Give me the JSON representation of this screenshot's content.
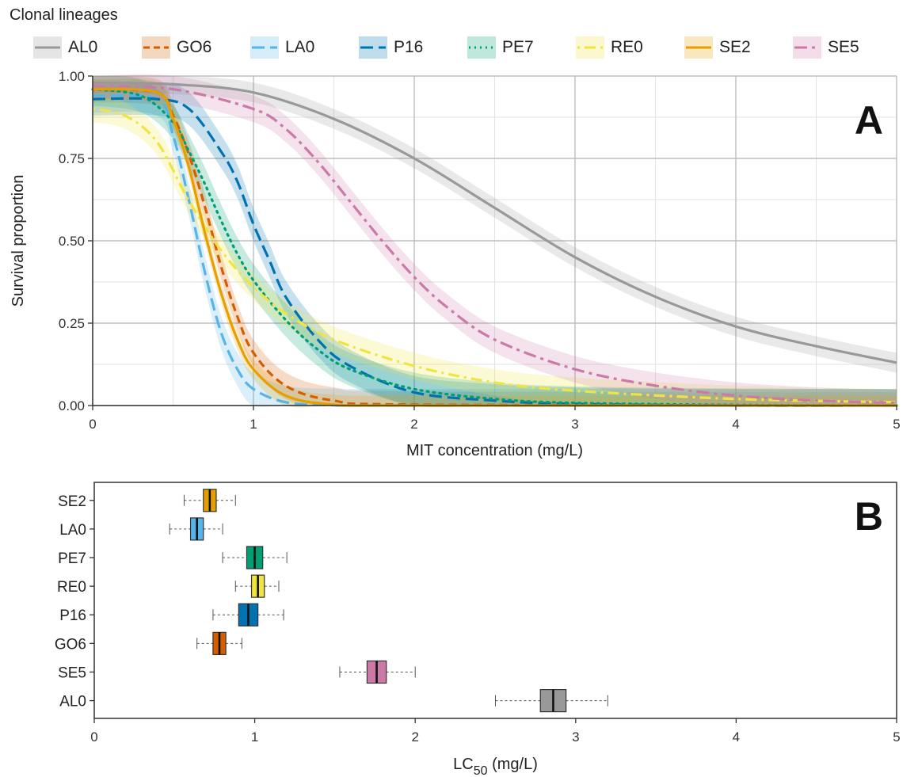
{
  "legend": {
    "title": "Clonal lineages",
    "entries": [
      {
        "name": "AL0",
        "color": "#999999",
        "dash": "solid"
      },
      {
        "name": "GO6",
        "color": "#D55E00",
        "dash": "dashed"
      },
      {
        "name": "LA0",
        "color": "#56B4E9",
        "dash": "longdash"
      },
      {
        "name": "P16",
        "color": "#0072B2",
        "dash": "longdash"
      },
      {
        "name": "PE7",
        "color": "#009E73",
        "dash": "dotted"
      },
      {
        "name": "RE0",
        "color": "#F0E442",
        "dash": "dotdash"
      },
      {
        "name": "SE2",
        "color": "#E69F00",
        "dash": "solid"
      },
      {
        "name": "SE5",
        "color": "#CC79A7",
        "dash": "dashdot"
      }
    ]
  },
  "chart_data": [
    {
      "type": "line",
      "panel_label": "A",
      "xlabel": "MIT concentration (mg/L)",
      "ylabel": "Survival proportion",
      "xlim": [
        0,
        5
      ],
      "ylim": [
        0,
        1
      ],
      "xticks": [
        "0",
        "1",
        "2",
        "3",
        "4",
        "5"
      ],
      "yticks": [
        "0.00",
        "0.25",
        "0.50",
        "0.75",
        "1.00"
      ],
      "grid": true,
      "series": [
        {
          "name": "AL0",
          "x": [
            0,
            0.5,
            1,
            1.5,
            2,
            2.5,
            3,
            3.5,
            4,
            4.5,
            5
          ],
          "y": [
            0.98,
            0.975,
            0.95,
            0.87,
            0.75,
            0.6,
            0.45,
            0.33,
            0.24,
            0.18,
            0.13
          ],
          "band": 0.03
        },
        {
          "name": "GO6",
          "x": [
            0,
            0.4,
            0.5,
            0.6,
            0.7,
            0.8,
            0.9,
            1,
            1.2,
            1.5,
            2,
            5
          ],
          "y": [
            0.96,
            0.95,
            0.88,
            0.76,
            0.6,
            0.42,
            0.27,
            0.16,
            0.06,
            0.015,
            0.003,
            0
          ],
          "band": 0.04
        },
        {
          "name": "LA0",
          "x": [
            0,
            0.4,
            0.5,
            0.6,
            0.7,
            0.8,
            0.9,
            1,
            1.2,
            1.5,
            2,
            5
          ],
          "y": [
            0.94,
            0.93,
            0.82,
            0.62,
            0.4,
            0.22,
            0.11,
            0.05,
            0.01,
            0.001,
            0,
            0
          ],
          "band": 0.05
        },
        {
          "name": "P16",
          "x": [
            0,
            0.4,
            0.6,
            0.8,
            0.9,
            1,
            1.1,
            1.2,
            1.4,
            1.6,
            2,
            2.5,
            3,
            4,
            5
          ],
          "y": [
            0.93,
            0.93,
            0.9,
            0.77,
            0.68,
            0.55,
            0.44,
            0.33,
            0.2,
            0.12,
            0.04,
            0.015,
            0.005,
            0,
            0
          ],
          "band": 0.05
        },
        {
          "name": "PE7",
          "x": [
            0,
            0.3,
            0.5,
            0.6,
            0.7,
            0.8,
            0.9,
            1,
            1.2,
            1.4,
            1.6,
            2,
            2.5,
            3,
            4,
            5
          ],
          "y": [
            0.96,
            0.94,
            0.86,
            0.77,
            0.67,
            0.56,
            0.46,
            0.38,
            0.26,
            0.17,
            0.11,
            0.05,
            0.02,
            0.008,
            0.002,
            0
          ],
          "band": 0.05
        },
        {
          "name": "RE0",
          "x": [
            0,
            0.2,
            0.4,
            0.6,
            0.8,
            1,
            1.2,
            1.5,
            2,
            2.5,
            3,
            4,
            5
          ],
          "y": [
            0.9,
            0.88,
            0.8,
            0.62,
            0.47,
            0.36,
            0.28,
            0.2,
            0.12,
            0.07,
            0.045,
            0.02,
            0.01
          ],
          "band": 0.04
        },
        {
          "name": "SE2",
          "x": [
            0,
            0.4,
            0.5,
            0.6,
            0.7,
            0.8,
            0.9,
            1,
            1.2,
            1.5,
            2,
            5
          ],
          "y": [
            0.96,
            0.95,
            0.87,
            0.72,
            0.52,
            0.34,
            0.2,
            0.11,
            0.03,
            0.003,
            0,
            0
          ],
          "band": 0.03
        },
        {
          "name": "SE5",
          "x": [
            0,
            0.5,
            1,
            1.2,
            1.4,
            1.6,
            1.8,
            2,
            2.2,
            2.5,
            3,
            3.5,
            4,
            4.5,
            5
          ],
          "y": [
            0.97,
            0.96,
            0.9,
            0.84,
            0.74,
            0.62,
            0.5,
            0.39,
            0.3,
            0.2,
            0.11,
            0.06,
            0.03,
            0.015,
            0.008
          ],
          "band": 0.04
        }
      ]
    },
    {
      "type": "box",
      "panel_label": "B",
      "xlabel_main": "LC",
      "xlabel_sub": "50",
      "xlabel_unit": " (mg/L)",
      "xlim": [
        0,
        5
      ],
      "xticks": [
        "0",
        "1",
        "2",
        "3",
        "4",
        "5"
      ],
      "grid": false,
      "boxes": [
        {
          "name": "SE2",
          "whisker_low": 0.56,
          "q1": 0.68,
          "median": 0.72,
          "q3": 0.76,
          "whisker_high": 0.88
        },
        {
          "name": "LA0",
          "whisker_low": 0.47,
          "q1": 0.6,
          "median": 0.64,
          "q3": 0.68,
          "whisker_high": 0.8
        },
        {
          "name": "PE7",
          "whisker_low": 0.8,
          "q1": 0.95,
          "median": 1.0,
          "q3": 1.05,
          "whisker_high": 1.2
        },
        {
          "name": "RE0",
          "whisker_low": 0.88,
          "q1": 0.98,
          "median": 1.02,
          "q3": 1.06,
          "whisker_high": 1.15
        },
        {
          "name": "P16",
          "whisker_low": 0.74,
          "q1": 0.9,
          "median": 0.96,
          "q3": 1.02,
          "whisker_high": 1.18
        },
        {
          "name": "GO6",
          "whisker_low": 0.64,
          "q1": 0.74,
          "median": 0.78,
          "q3": 0.82,
          "whisker_high": 0.92
        },
        {
          "name": "SE5",
          "whisker_low": 1.53,
          "q1": 1.7,
          "median": 1.76,
          "q3": 1.82,
          "whisker_high": 2.0
        },
        {
          "name": "AL0",
          "whisker_low": 2.5,
          "q1": 2.78,
          "median": 2.86,
          "q3": 2.94,
          "whisker_high": 3.2
        }
      ]
    }
  ]
}
